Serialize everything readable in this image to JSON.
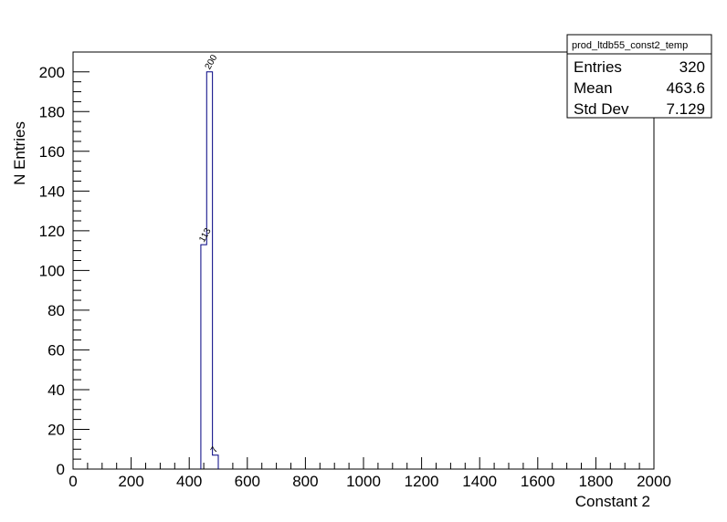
{
  "chart_data": {
    "type": "bar",
    "histogram_name": "prod_ltdb55_const2_temp",
    "xlabel": "Constant 2",
    "ylabel": "N Entries",
    "xlim": [
      0,
      2000
    ],
    "ylim": [
      0,
      210
    ],
    "x_ticks": [
      "0",
      "200",
      "400",
      "600",
      "800",
      "1000",
      "1200",
      "1400",
      "1600",
      "1800",
      "2000"
    ],
    "y_ticks": [
      "0",
      "20",
      "40",
      "60",
      "80",
      "100",
      "120",
      "140",
      "160",
      "180",
      "200"
    ],
    "bins": [
      {
        "x_low": 440,
        "x_high": 460,
        "value": 113,
        "label": "113"
      },
      {
        "x_low": 460,
        "x_high": 480,
        "value": 200,
        "label": "200"
      },
      {
        "x_low": 480,
        "x_high": 500,
        "value": 7,
        "label": "7"
      }
    ],
    "line_color": "#000080",
    "stats": {
      "title": "prod_ltdb55_const2_temp",
      "rows": [
        {
          "label": "Entries",
          "value": "320"
        },
        {
          "label": "Mean",
          "value": "463.6"
        },
        {
          "label": "Std Dev",
          "value": "7.129"
        }
      ]
    }
  }
}
